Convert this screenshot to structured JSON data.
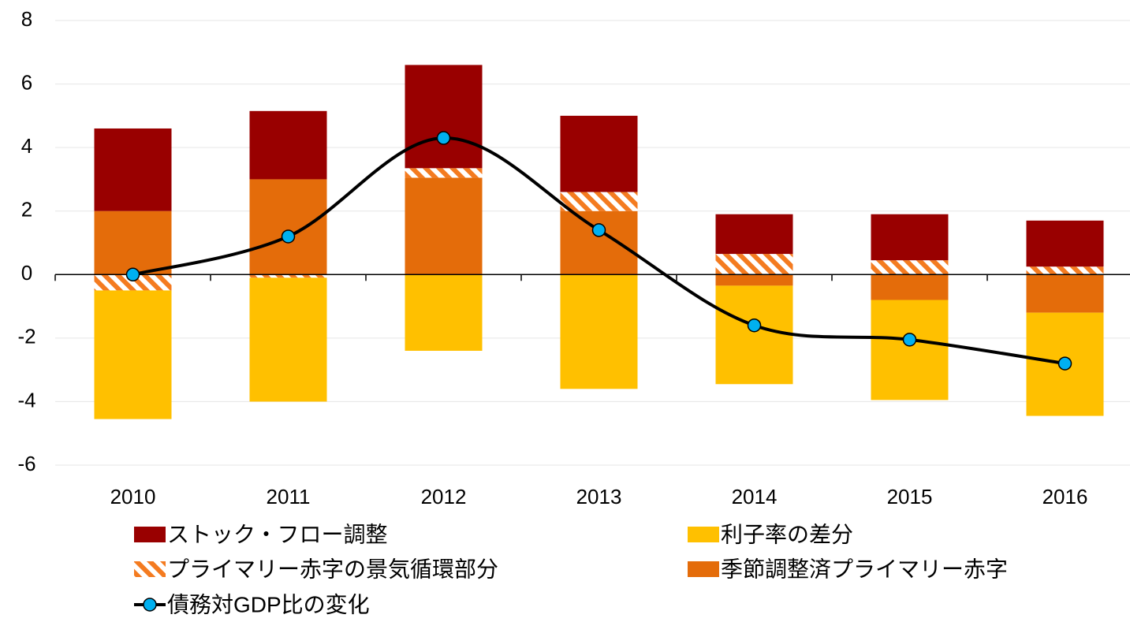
{
  "chart_data": {
    "type": "stacked-bar-line",
    "categories": [
      "2010",
      "2011",
      "2012",
      "2013",
      "2014",
      "2015",
      "2016"
    ],
    "series": [
      {
        "name": "ストック・フロー調整",
        "color": "#990000",
        "values": [
          2.6,
          2.15,
          3.25,
          2.4,
          1.25,
          1.45,
          1.45
        ]
      },
      {
        "name": "利子率の差分",
        "color": "#ffc000",
        "values": [
          -4.05,
          -3.9,
          -2.4,
          -3.6,
          -3.1,
          -3.15,
          -3.25
        ]
      },
      {
        "name": "プライマリー赤字の景気循環部分",
        "color": "#f47b20",
        "hatch": true,
        "values": [
          -0.5,
          -0.1,
          0.3,
          0.6,
          0.65,
          0.45,
          0.25
        ]
      },
      {
        "name": "季節調整済プライマリー赤字",
        "color": "#e46c0a",
        "values": [
          2.0,
          3.0,
          3.05,
          2.0,
          -0.35,
          -0.8,
          -1.2
        ]
      },
      {
        "name": "債務対GDP比の変化",
        "type": "line",
        "color": "#000000",
        "marker_color": "#00b0f0",
        "values": [
          0.0,
          1.2,
          4.3,
          1.4,
          -1.6,
          -2.05,
          -2.8
        ]
      }
    ],
    "ylim": [
      -6,
      8
    ],
    "yticks": [
      -6,
      -4,
      -2,
      0,
      2,
      4,
      6,
      8
    ],
    "grid": true,
    "legend": "bottom"
  }
}
